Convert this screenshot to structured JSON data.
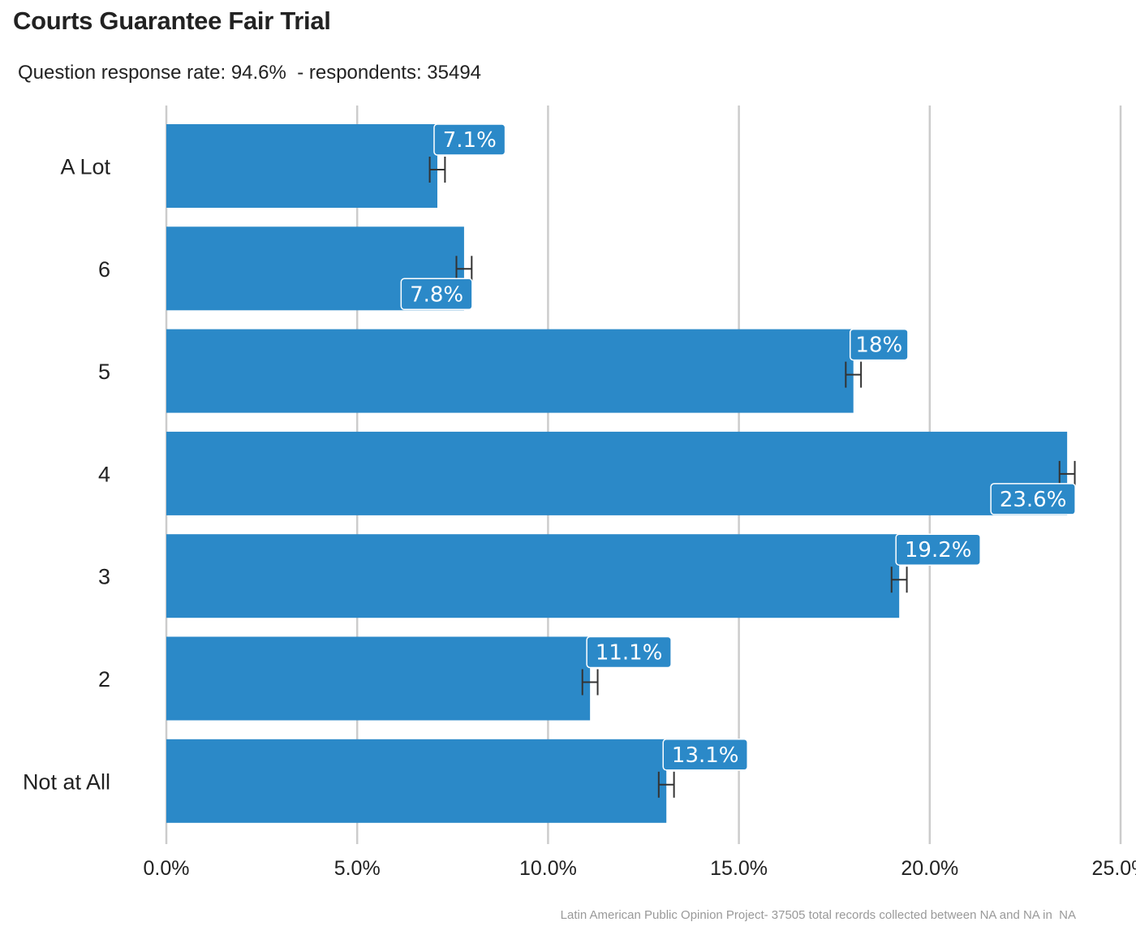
{
  "title": "Courts Guarantee Fair Trial",
  "subtitle": "Question response rate: 94.6%  - respondents: 35494",
  "caption": "Latin American Public Opinion Project- 37505 total records collected between NA and NA in  NA",
  "colors": {
    "bar": "#2b89c8",
    "grid": "#cccccc",
    "error_bar": "#333333",
    "label_border": "#ffffff"
  },
  "chart_data": {
    "type": "bar",
    "orientation": "horizontal",
    "categories": [
      "A Lot",
      "6",
      "5",
      "4",
      "3",
      "2",
      "Not at All"
    ],
    "values": [
      7.1,
      7.8,
      18.0,
      23.6,
      19.2,
      11.1,
      13.1
    ],
    "data_labels": [
      "7.1%",
      "7.8%",
      "18%",
      "23.6%",
      "19.2%",
      "11.1%",
      "13.1%"
    ],
    "data_label_position": [
      "above",
      "below",
      "above",
      "below",
      "above",
      "above",
      "above"
    ],
    "error_bars": [
      [
        6.9,
        7.3
      ],
      [
        7.6,
        8.0
      ],
      [
        17.8,
        18.2
      ],
      [
        23.4,
        23.8
      ],
      [
        19.0,
        19.4
      ],
      [
        10.9,
        11.3
      ],
      [
        12.9,
        13.3
      ]
    ],
    "xlim": [
      0,
      25
    ],
    "x_ticks": [
      0,
      5,
      10,
      15,
      20,
      25
    ],
    "x_tick_labels": [
      "0.0%",
      "5.0%",
      "10.0%",
      "15.0%",
      "20.0%",
      "25.0%"
    ],
    "xlabel": "",
    "ylabel": "",
    "grid": "vertical major gridlines",
    "legend": "none"
  }
}
